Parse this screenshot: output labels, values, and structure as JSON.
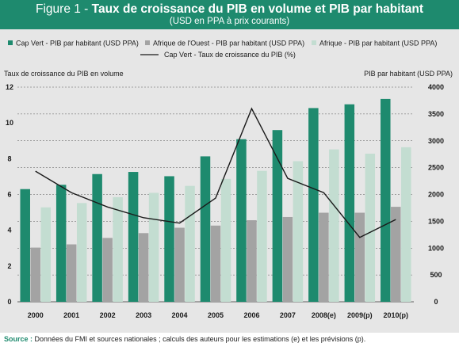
{
  "header": {
    "prefix": "Figure 1 - ",
    "title": "Taux de croissance du PIB en volume et PIB par habitant",
    "subtitle": "(USD en PPA à prix courants)"
  },
  "source": {
    "label": "Source :",
    "text": " Données du FMI et sources nationales ; calculs des auteurs pour les estimations (e) et les prévisions (p)."
  },
  "colors": {
    "header_bg": "#1e8a6e",
    "cap_vert_pib": "#1e8a6e",
    "afrique_ouest_pib": "#a3a3a3",
    "afrique_pib": "#c3ddd1",
    "line": "#1a1a1a",
    "chart_bg": "#e6e6e6"
  },
  "chart_data": {
    "type": "bar",
    "categories": [
      "2000",
      "2001",
      "2002",
      "2003",
      "2004",
      "2005",
      "2006",
      "2007",
      "2008(e)",
      "2009(p)",
      "2010(p)"
    ],
    "series": [
      {
        "name": "Cap Vert - PIB par habitant (USD PPA)",
        "axis": "right",
        "kind": "bar",
        "values": [
          2100,
          2180,
          2380,
          2420,
          2340,
          2710,
          3030,
          3200,
          3610,
          3680,
          3780
        ]
      },
      {
        "name": "Afrique de l'Ouest - PIB par habitant (USD PPA)",
        "axis": "right",
        "kind": "bar",
        "values": [
          1010,
          1070,
          1190,
          1280,
          1380,
          1420,
          1520,
          1580,
          1660,
          1660,
          1770
        ]
      },
      {
        "name": "Afrique - PIB par habitant (USD PPA)",
        "axis": "right",
        "kind": "bar",
        "values": [
          1760,
          1840,
          1950,
          2030,
          2160,
          2290,
          2440,
          2620,
          2840,
          2760,
          2880
        ]
      },
      {
        "name": "Cap Vert - Taux de croissance du PIB (%)",
        "axis": "left",
        "kind": "line",
        "values": [
          7.3,
          6.1,
          5.3,
          4.7,
          4.4,
          5.8,
          10.8,
          6.9,
          6.1,
          3.6,
          4.6
        ]
      }
    ],
    "ylabel_left": "Taux de croissance du PIB en volume",
    "ylabel_right": "PIB par habitant (USD PPA)",
    "ylim_left": [
      0,
      12
    ],
    "ylim_right": [
      0,
      4000
    ],
    "yticks_left": [
      0,
      2,
      4,
      6,
      8,
      10,
      12
    ],
    "yticks_right": [
      0,
      500,
      1000,
      1500,
      2000,
      2500,
      3000,
      3500,
      4000
    ],
    "grid": "horizontal dashed",
    "legend_position": "top"
  }
}
